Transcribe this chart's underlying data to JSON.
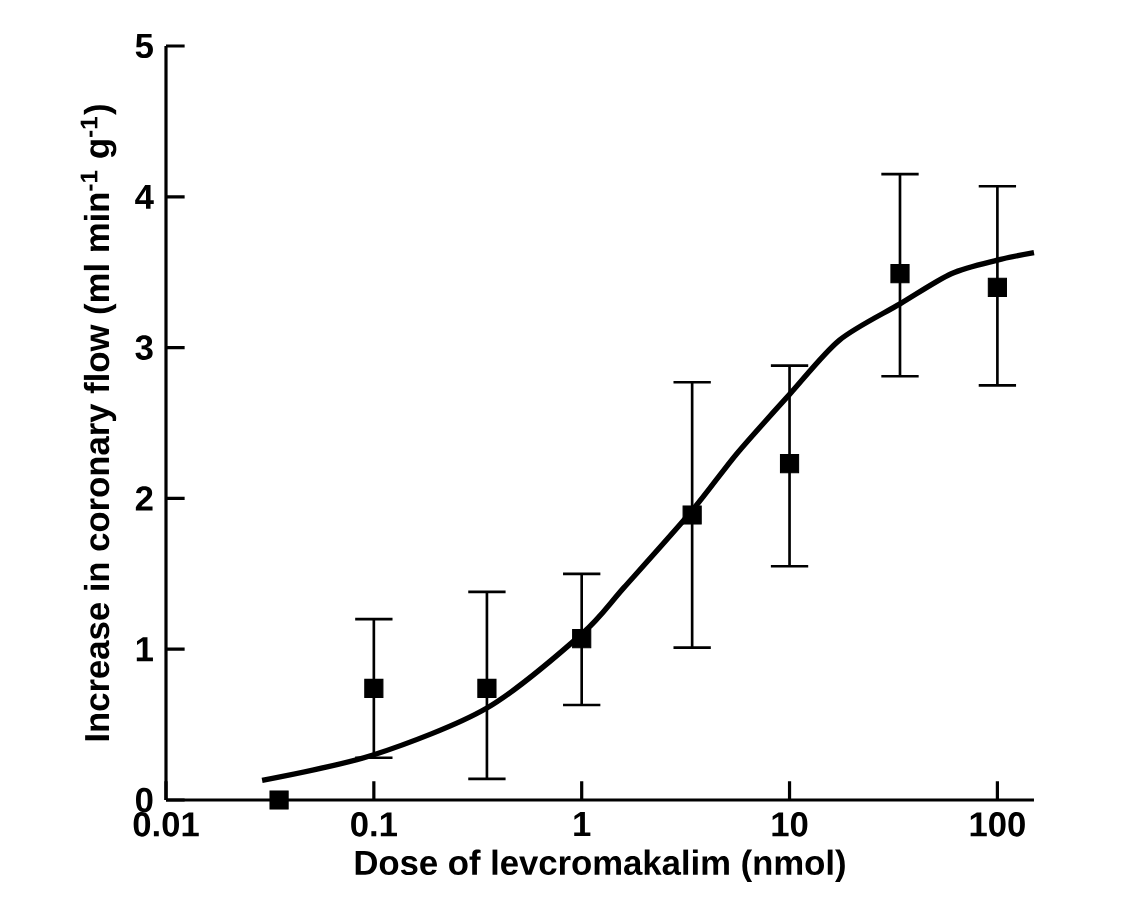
{
  "chart_data": {
    "type": "scatter",
    "xlabel": "Dose of levcromakalim (nmol)",
    "ylabel": "Increase in coronary flow (ml min$^{-1}$ g$^{-1}$)",
    "log": "x",
    "xlim": [
      0.01,
      150
    ],
    "xticks": [
      0.01,
      0.1,
      1,
      10,
      100
    ],
    "ylim": [
      0,
      5
    ],
    "yticks": [
      0,
      1,
      2,
      3,
      4,
      5
    ],
    "series": [
      {
        "color": "#000000",
        "marker": "square",
        "x": [
          0.035,
          0.1,
          0.35,
          1,
          3.4,
          10,
          34,
          100
        ],
        "values": [
          0,
          0.74,
          0.74,
          1.07,
          1.89,
          2.23,
          3.49,
          3.4
        ],
        "errors": [
          null,
          [
            0.28,
            1.2
          ],
          [
            0.14,
            1.38
          ],
          [
            0.63,
            1.5
          ],
          [
            1.01,
            2.77
          ],
          [
            1.55,
            2.88
          ],
          [
            2.81,
            4.15
          ],
          [
            2.75,
            4.07
          ]
        ]
      },
      {
        "type": "line",
        "color": "#000000",
        "marker": "none",
        "line_style": "solid",
        "x": [
          0.029,
          0.1,
          0.35,
          1,
          1.6,
          3.4,
          5.6,
          10,
          17.4,
          34,
          60,
          100,
          150
        ],
        "values": [
          0.13,
          0.3,
          0.61,
          1.1,
          1.41,
          1.92,
          2.3,
          2.69,
          3.05,
          3.29,
          3.49,
          3.58,
          3.63
        ]
      }
    ]
  }
}
